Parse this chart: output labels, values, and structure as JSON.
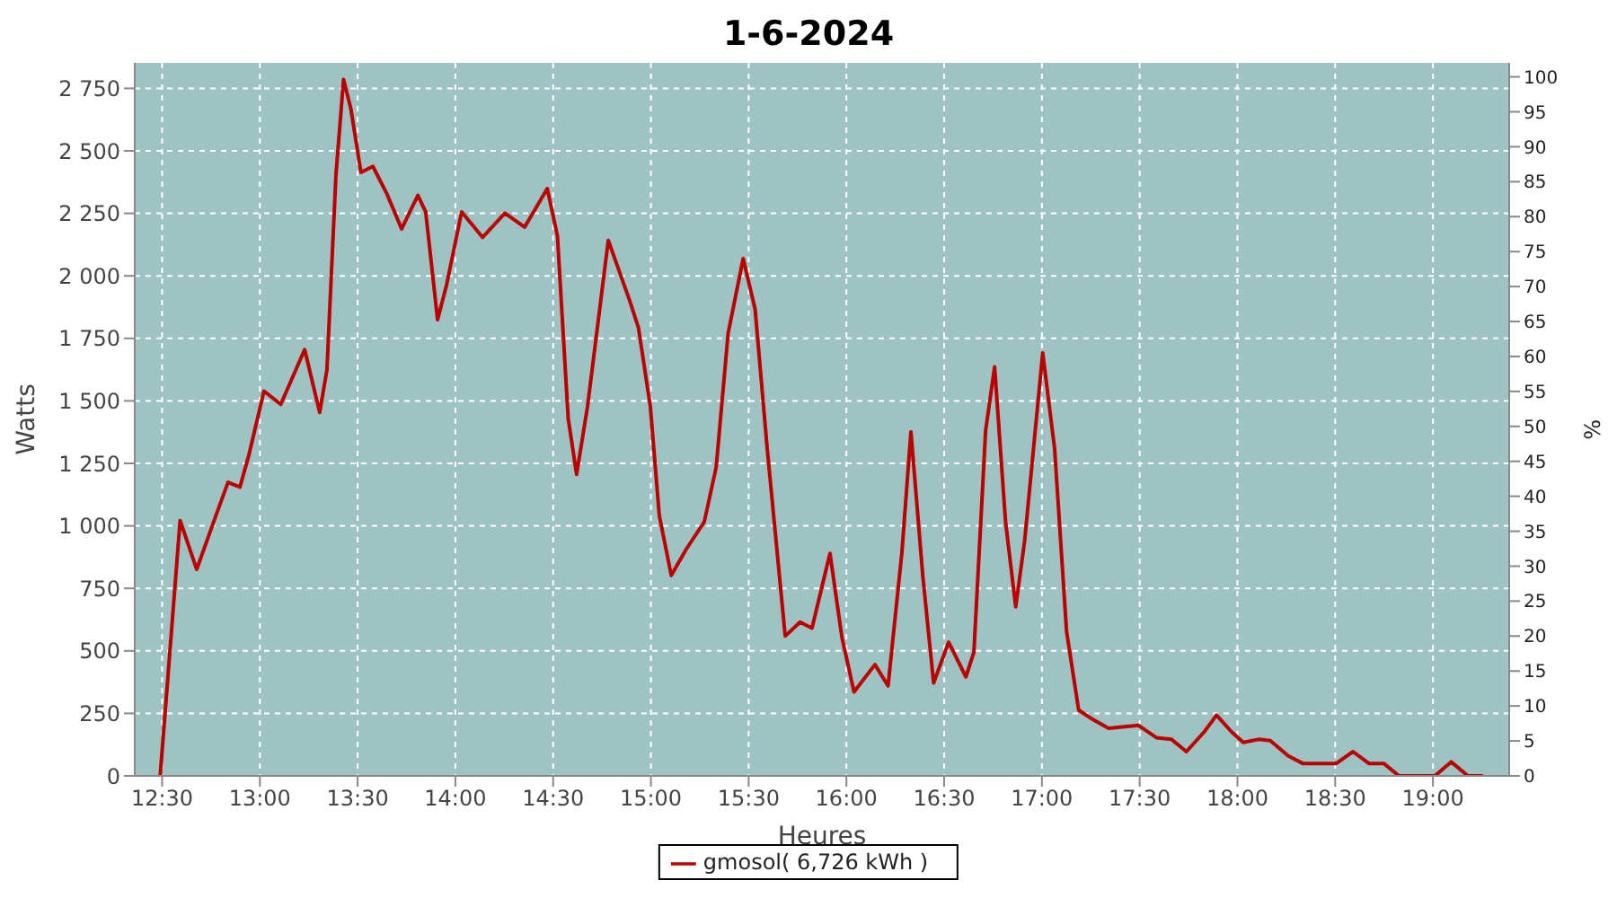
{
  "chart_data": {
    "type": "line",
    "title": "1-6-2024",
    "xlabel": "Heures",
    "ylabel": "Watts",
    "y2label": "%",
    "x": [
      12.49,
      12.592,
      12.677,
      12.776,
      12.837,
      12.898,
      12.944,
      13.021,
      13.107,
      13.229,
      13.306,
      13.343,
      13.389,
      13.428,
      13.465,
      13.517,
      13.578,
      13.649,
      13.725,
      13.808,
      13.848,
      13.909,
      13.955,
      14.032,
      14.139,
      14.253,
      14.354,
      14.47,
      14.522,
      14.577,
      14.62,
      14.676,
      14.782,
      14.89,
      14.936,
      14.997,
      15.043,
      15.104,
      15.181,
      15.273,
      15.334,
      15.395,
      15.472,
      15.533,
      15.595,
      15.687,
      15.763,
      15.824,
      15.916,
      15.977,
      16.039,
      16.146,
      16.213,
      16.284,
      16.33,
      16.391,
      16.446,
      16.523,
      16.611,
      16.652,
      16.712,
      16.758,
      16.814,
      16.866,
      16.912,
      17.004,
      17.065,
      17.126,
      17.188,
      17.249,
      17.341,
      17.494,
      17.585,
      17.663,
      17.739,
      17.831,
      17.893,
      17.969,
      18.03,
      18.107,
      18.168,
      18.26,
      18.336,
      18.504,
      18.591,
      18.674,
      18.75,
      18.826,
      19.01,
      19.093,
      19.179,
      19.256
    ],
    "series": [
      {
        "name": "gmosol( 6,726 kWh )",
        "color": "#bb0000",
        "values": [
          0,
          1021,
          826,
          1043,
          1174,
          1155,
          1284,
          1539,
          1486,
          1705,
          1454,
          1624,
          2402,
          2786,
          2670,
          2414,
          2438,
          2329,
          2188,
          2322,
          2256,
          1825,
          1964,
          2256,
          2154,
          2251,
          2195,
          2349,
          2159,
          1430,
          1206,
          1478,
          2142,
          1904,
          1794,
          1478,
          1041,
          802,
          907,
          1016,
          1235,
          1770,
          2069,
          1867,
          1308,
          559,
          615,
          591,
          890,
          554,
          336,
          445,
          360,
          895,
          1376,
          797,
          372,
          535,
          396,
          494,
          1381,
          1636,
          1016,
          676,
          943,
          1692,
          1308,
          578,
          263,
          231,
          190,
          202,
          153,
          146,
          97,
          177,
          243,
          177,
          134,
          146,
          141,
          80,
          49,
          49,
          97,
          49,
          49,
          0,
          0,
          56,
          0,
          0
        ]
      }
    ],
    "xlim": [
      12.36,
      19.39
    ],
    "xticks": [
      {
        "value": 12.5,
        "label": "12:30"
      },
      {
        "value": 13,
        "label": "13:00"
      },
      {
        "value": 13.5,
        "label": "13:30"
      },
      {
        "value": 14,
        "label": "14:00"
      },
      {
        "value": 14.5,
        "label": "14:30"
      },
      {
        "value": 15,
        "label": "15:00"
      },
      {
        "value": 15.5,
        "label": "15:30"
      },
      {
        "value": 16,
        "label": "16:00"
      },
      {
        "value": 16.5,
        "label": "16:30"
      },
      {
        "value": 17,
        "label": "17:00"
      },
      {
        "value": 17.5,
        "label": "17:30"
      },
      {
        "value": 18,
        "label": "18:00"
      },
      {
        "value": 18.5,
        "label": "18:30"
      },
      {
        "value": 19,
        "label": "19:00"
      }
    ],
    "ylim": [
      0,
      2852
    ],
    "yticks": [
      0,
      250,
      500,
      750,
      {
        "value": 1000,
        "label": "1 000"
      },
      {
        "value": 1250,
        "label": "1 250"
      },
      {
        "value": 1500,
        "label": "1 500"
      },
      {
        "value": 1750,
        "label": "1 750"
      },
      {
        "value": 2000,
        "label": "2 000"
      },
      {
        "value": 2250,
        "label": "2 250"
      },
      {
        "value": 2500,
        "label": "2 500"
      },
      {
        "value": 2750,
        "label": "2 750"
      }
    ],
    "y2lim": [
      0,
      102
    ],
    "y2ticks": [
      0,
      5,
      10,
      15,
      20,
      25,
      30,
      35,
      40,
      45,
      50,
      55,
      60,
      65,
      70,
      75,
      80,
      85,
      90,
      95,
      100
    ],
    "grid": true,
    "legend": "bottom",
    "marker": "none",
    "line_style": "solid"
  }
}
